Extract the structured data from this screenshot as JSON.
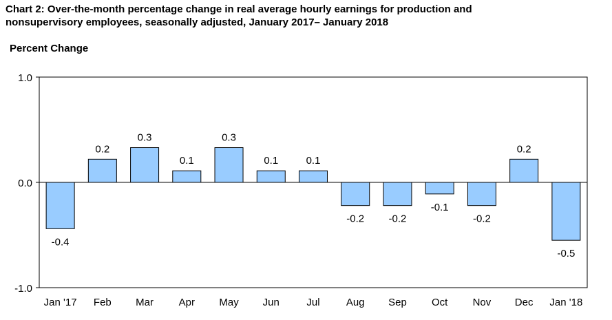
{
  "chart_data": {
    "type": "bar",
    "title_line1": "Chart 2: Over-the-month percentage change in real average hourly earnings for production and",
    "title_line2": "nonsupervisory employees, seasonally adjusted, January 2017– January 2018",
    "ylabel": "Percent Change",
    "xlabel": "",
    "categories": [
      "Jan '17",
      "Feb",
      "Mar",
      "Apr",
      "May",
      "Jun",
      "Jul",
      "Aug",
      "Sep",
      "Oct",
      "Nov",
      "Dec",
      "Jan '18"
    ],
    "values": [
      -0.4,
      0.2,
      0.3,
      0.1,
      0.3,
      0.1,
      0.1,
      -0.2,
      -0.2,
      -0.1,
      -0.2,
      0.2,
      -0.5
    ],
    "display_values": [
      -0.44,
      0.22,
      0.33,
      0.11,
      0.33,
      0.11,
      0.11,
      -0.22,
      -0.22,
      -0.11,
      -0.22,
      0.22,
      -0.55
    ],
    "value_labels": [
      "-0.4",
      "0.2",
      "0.3",
      "0.1",
      "0.3",
      "0.1",
      "0.1",
      "-0.2",
      "-0.2",
      "-0.1",
      "-0.2",
      "0.2",
      "-0.5"
    ],
    "ylim": [
      -1.0,
      1.0
    ],
    "yticks": [
      1.0,
      0.0,
      -1.0
    ],
    "ytick_labels": [
      "1.0",
      "0.0",
      "-1.0"
    ],
    "grid": false,
    "legend": "none",
    "bar_color": "#99ccff",
    "bar_stroke": "#000000"
  }
}
